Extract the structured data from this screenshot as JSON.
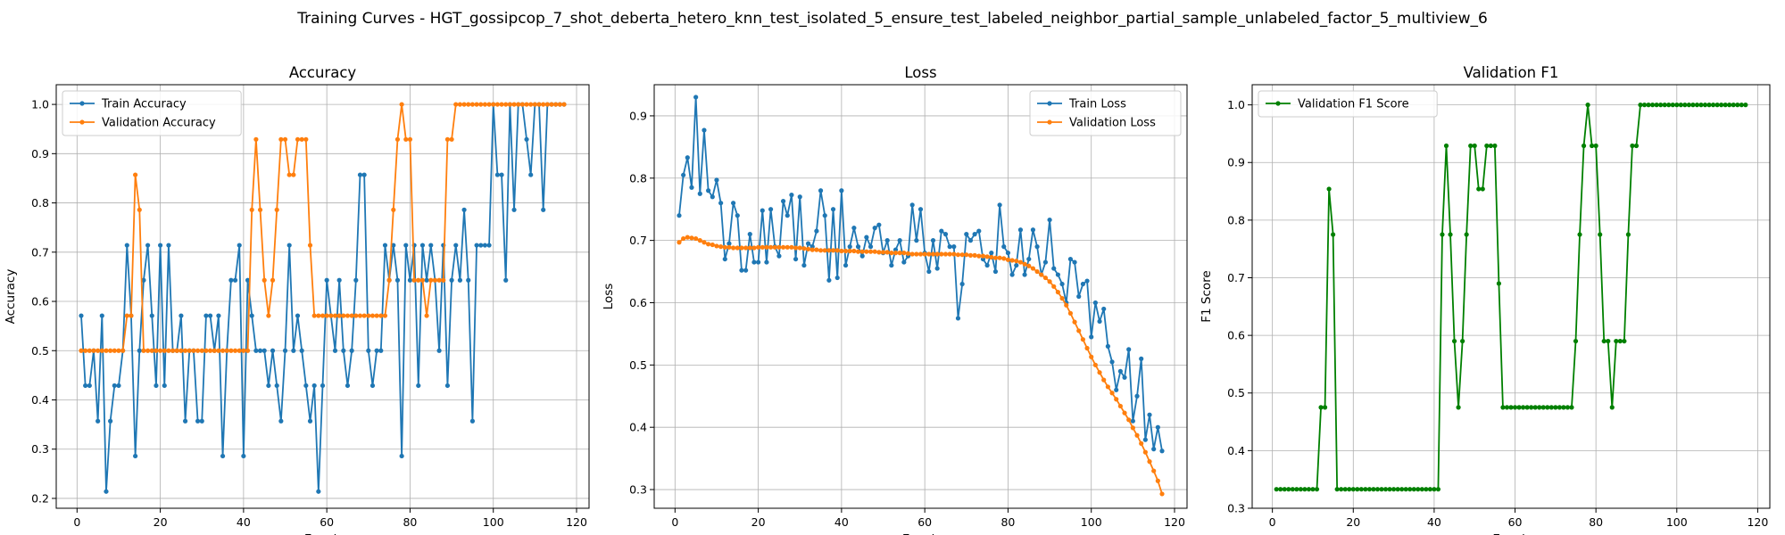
{
  "figure": {
    "suptitle": "Training Curves - HGT_gossipcop_7_shot_deberta_hetero_knn_test_isolated_5_ensure_test_labeled_neighbor_partial_sample_unlabeled_factor_5_multiview_6"
  },
  "chart_data": [
    {
      "type": "line",
      "title": "Accuracy",
      "xlabel": "Epoch",
      "ylabel": "Accuracy",
      "xlim": [
        -5,
        123
      ],
      "ylim": [
        0.18,
        1.04
      ],
      "xticks": [
        0,
        20,
        40,
        60,
        80,
        100,
        120
      ],
      "yticks": [
        0.2,
        0.3,
        0.4,
        0.5,
        0.6,
        0.7,
        0.8,
        0.9,
        1.0
      ],
      "grid": true,
      "legend_position": "top-left",
      "x": [
        1,
        2,
        3,
        4,
        5,
        6,
        7,
        8,
        9,
        10,
        11,
        12,
        13,
        14,
        15,
        16,
        17,
        18,
        19,
        20,
        21,
        22,
        23,
        24,
        25,
        26,
        27,
        28,
        29,
        30,
        31,
        32,
        33,
        34,
        35,
        36,
        37,
        38,
        39,
        40,
        41,
        42,
        43,
        44,
        45,
        46,
        47,
        48,
        49,
        50,
        51,
        52,
        53,
        54,
        55,
        56,
        57,
        58,
        59,
        60,
        61,
        62,
        63,
        64,
        65,
        66,
        67,
        68,
        69,
        70,
        71,
        72,
        73,
        74,
        75,
        76,
        77,
        78,
        79,
        80,
        81,
        82,
        83,
        84,
        85,
        86,
        87,
        88,
        89,
        90,
        91,
        92,
        93,
        94,
        95,
        96,
        97,
        98,
        99,
        100,
        101,
        102,
        103,
        104,
        105,
        106,
        107,
        108,
        109,
        110,
        111,
        112,
        113,
        114,
        115,
        116,
        117
      ],
      "series": [
        {
          "name": "Train Accuracy",
          "color": "#1f77b4",
          "values": [
            0.571,
            0.429,
            0.429,
            0.5,
            0.357,
            0.571,
            0.214,
            0.357,
            0.429,
            0.429,
            0.5,
            0.714,
            0.571,
            0.286,
            0.5,
            0.643,
            0.714,
            0.571,
            0.429,
            0.714,
            0.429,
            0.714,
            0.5,
            0.5,
            0.571,
            0.357,
            0.5,
            0.5,
            0.357,
            0.357,
            0.571,
            0.571,
            0.5,
            0.571,
            0.286,
            0.5,
            0.643,
            0.643,
            0.714,
            0.286,
            0.643,
            0.571,
            0.5,
            0.5,
            0.5,
            0.429,
            0.5,
            0.429,
            0.357,
            0.5,
            0.714,
            0.5,
            0.571,
            0.5,
            0.429,
            0.357,
            0.429,
            0.214,
            0.429,
            0.643,
            0.571,
            0.5,
            0.643,
            0.5,
            0.429,
            0.5,
            0.643,
            0.857,
            0.857,
            0.5,
            0.429,
            0.5,
            0.5,
            0.714,
            0.643,
            0.714,
            0.643,
            0.286,
            0.714,
            0.643,
            0.714,
            0.429,
            0.714,
            0.643,
            0.714,
            0.643,
            0.5,
            0.714,
            0.429,
            0.643,
            0.714,
            0.643,
            0.786,
            0.643,
            0.357,
            0.714,
            0.714,
            0.714,
            0.714,
            1.0,
            0.857,
            0.857,
            0.643,
            1.0,
            0.786,
            1.0,
            1.0,
            0.929,
            0.857,
            1.0,
            1.0,
            0.786,
            1.0,
            1.0,
            1.0,
            1.0,
            1.0
          ]
        },
        {
          "name": "Validation Accuracy",
          "color": "#ff7f0e",
          "values": [
            0.5,
            0.5,
            0.5,
            0.5,
            0.5,
            0.5,
            0.5,
            0.5,
            0.5,
            0.5,
            0.5,
            0.571,
            0.571,
            0.857,
            0.786,
            0.5,
            0.5,
            0.5,
            0.5,
            0.5,
            0.5,
            0.5,
            0.5,
            0.5,
            0.5,
            0.5,
            0.5,
            0.5,
            0.5,
            0.5,
            0.5,
            0.5,
            0.5,
            0.5,
            0.5,
            0.5,
            0.5,
            0.5,
            0.5,
            0.5,
            0.5,
            0.786,
            0.929,
            0.786,
            0.643,
            0.571,
            0.643,
            0.786,
            0.929,
            0.929,
            0.857,
            0.857,
            0.929,
            0.929,
            0.929,
            0.714,
            0.571,
            0.571,
            0.571,
            0.571,
            0.571,
            0.571,
            0.571,
            0.571,
            0.571,
            0.571,
            0.571,
            0.571,
            0.571,
            0.571,
            0.571,
            0.571,
            0.571,
            0.571,
            0.643,
            0.786,
            0.929,
            1.0,
            0.929,
            0.929,
            0.643,
            0.643,
            0.643,
            0.571,
            0.643,
            0.643,
            0.643,
            0.643,
            0.929,
            0.929,
            1.0,
            1.0,
            1.0,
            1.0,
            1.0,
            1.0,
            1.0,
            1.0,
            1.0,
            1.0,
            1.0,
            1.0,
            1.0,
            1.0,
            1.0,
            1.0,
            1.0,
            1.0,
            1.0,
            1.0,
            1.0,
            1.0,
            1.0,
            1.0,
            1.0,
            1.0,
            1.0
          ]
        }
      ]
    },
    {
      "type": "line",
      "title": "Loss",
      "xlabel": "Epoch",
      "ylabel": "Loss",
      "xlim": [
        -5,
        123
      ],
      "ylim": [
        0.27,
        0.95
      ],
      "xticks": [
        0,
        20,
        40,
        60,
        80,
        100,
        120
      ],
      "yticks": [
        0.3,
        0.4,
        0.5,
        0.6,
        0.7,
        0.8,
        0.9
      ],
      "grid": true,
      "legend_position": "top-right",
      "x": [
        1,
        2,
        3,
        4,
        5,
        6,
        7,
        8,
        9,
        10,
        11,
        12,
        13,
        14,
        15,
        16,
        17,
        18,
        19,
        20,
        21,
        22,
        23,
        24,
        25,
        26,
        27,
        28,
        29,
        30,
        31,
        32,
        33,
        34,
        35,
        36,
        37,
        38,
        39,
        40,
        41,
        42,
        43,
        44,
        45,
        46,
        47,
        48,
        49,
        50,
        51,
        52,
        53,
        54,
        55,
        56,
        57,
        58,
        59,
        60,
        61,
        62,
        63,
        64,
        65,
        66,
        67,
        68,
        69,
        70,
        71,
        72,
        73,
        74,
        75,
        76,
        77,
        78,
        79,
        80,
        81,
        82,
        83,
        84,
        85,
        86,
        87,
        88,
        89,
        90,
        91,
        92,
        93,
        94,
        95,
        96,
        97,
        98,
        99,
        100,
        101,
        102,
        103,
        104,
        105,
        106,
        107,
        108,
        109,
        110,
        111,
        112,
        113,
        114,
        115,
        116,
        117
      ],
      "series": [
        {
          "name": "Train Loss",
          "color": "#1f77b4",
          "values": [
            0.74,
            0.805,
            0.833,
            0.785,
            0.93,
            0.775,
            0.877,
            0.78,
            0.77,
            0.797,
            0.76,
            0.67,
            0.695,
            0.76,
            0.74,
            0.652,
            0.652,
            0.71,
            0.665,
            0.665,
            0.748,
            0.665,
            0.75,
            0.69,
            0.675,
            0.763,
            0.74,
            0.773,
            0.67,
            0.77,
            0.66,
            0.695,
            0.69,
            0.715,
            0.78,
            0.74,
            0.636,
            0.75,
            0.64,
            0.78,
            0.66,
            0.69,
            0.72,
            0.69,
            0.675,
            0.705,
            0.69,
            0.72,
            0.725,
            0.68,
            0.7,
            0.66,
            0.685,
            0.7,
            0.665,
            0.675,
            0.757,
            0.7,
            0.75,
            0.68,
            0.65,
            0.7,
            0.655,
            0.715,
            0.71,
            0.69,
            0.69,
            0.575,
            0.63,
            0.71,
            0.7,
            0.71,
            0.715,
            0.67,
            0.66,
            0.68,
            0.65,
            0.757,
            0.69,
            0.68,
            0.645,
            0.66,
            0.717,
            0.645,
            0.67,
            0.717,
            0.69,
            0.645,
            0.665,
            0.733,
            0.655,
            0.645,
            0.63,
            0.6,
            0.67,
            0.665,
            0.61,
            0.63,
            0.635,
            0.545,
            0.6,
            0.57,
            0.59,
            0.53,
            0.505,
            0.46,
            0.49,
            0.48,
            0.525,
            0.41,
            0.45,
            0.51,
            0.38,
            0.42,
            0.365,
            0.4,
            0.362
          ]
        },
        {
          "name": "Validation Loss",
          "color": "#ff7f0e",
          "values": [
            0.697,
            0.703,
            0.705,
            0.704,
            0.703,
            0.7,
            0.697,
            0.694,
            0.693,
            0.691,
            0.69,
            0.689,
            0.689,
            0.688,
            0.688,
            0.688,
            0.688,
            0.688,
            0.688,
            0.689,
            0.689,
            0.689,
            0.689,
            0.689,
            0.689,
            0.689,
            0.689,
            0.689,
            0.688,
            0.688,
            0.687,
            0.686,
            0.685,
            0.685,
            0.684,
            0.684,
            0.684,
            0.684,
            0.684,
            0.683,
            0.683,
            0.683,
            0.683,
            0.682,
            0.682,
            0.682,
            0.682,
            0.682,
            0.681,
            0.681,
            0.681,
            0.68,
            0.68,
            0.68,
            0.68,
            0.679,
            0.678,
            0.678,
            0.678,
            0.678,
            0.678,
            0.678,
            0.678,
            0.678,
            0.678,
            0.678,
            0.678,
            0.677,
            0.677,
            0.677,
            0.676,
            0.676,
            0.675,
            0.675,
            0.674,
            0.673,
            0.672,
            0.672,
            0.671,
            0.669,
            0.668,
            0.667,
            0.665,
            0.662,
            0.659,
            0.655,
            0.65,
            0.645,
            0.64,
            0.634,
            0.626,
            0.617,
            0.607,
            0.596,
            0.583,
            0.569,
            0.555,
            0.541,
            0.527,
            0.513,
            0.5,
            0.488,
            0.476,
            0.465,
            0.455,
            0.445,
            0.434,
            0.423,
            0.412,
            0.399,
            0.387,
            0.374,
            0.36,
            0.345,
            0.33,
            0.314,
            0.293
          ]
        }
      ]
    },
    {
      "type": "line",
      "title": "Validation F1",
      "xlabel": "Epoch",
      "ylabel": "F1 Score",
      "xlim": [
        -5,
        123
      ],
      "ylim": [
        0.3,
        1.035
      ],
      "xticks": [
        0,
        20,
        40,
        60,
        80,
        100,
        120
      ],
      "yticks": [
        0.3,
        0.4,
        0.5,
        0.6,
        0.7,
        0.8,
        0.9,
        1.0
      ],
      "grid": true,
      "legend_position": "top-left",
      "x": [
        1,
        2,
        3,
        4,
        5,
        6,
        7,
        8,
        9,
        10,
        11,
        12,
        13,
        14,
        15,
        16,
        17,
        18,
        19,
        20,
        21,
        22,
        23,
        24,
        25,
        26,
        27,
        28,
        29,
        30,
        31,
        32,
        33,
        34,
        35,
        36,
        37,
        38,
        39,
        40,
        41,
        42,
        43,
        44,
        45,
        46,
        47,
        48,
        49,
        50,
        51,
        52,
        53,
        54,
        55,
        56,
        57,
        58,
        59,
        60,
        61,
        62,
        63,
        64,
        65,
        66,
        67,
        68,
        69,
        70,
        71,
        72,
        73,
        74,
        75,
        76,
        77,
        78,
        79,
        80,
        81,
        82,
        83,
        84,
        85,
        86,
        87,
        88,
        89,
        90,
        91,
        92,
        93,
        94,
        95,
        96,
        97,
        98,
        99,
        100,
        101,
        102,
        103,
        104,
        105,
        106,
        107,
        108,
        109,
        110,
        111,
        112,
        113,
        114,
        115,
        116,
        117
      ],
      "series": [
        {
          "name": "Validation F1 Score",
          "color": "#008000",
          "values": [
            0.333,
            0.333,
            0.333,
            0.333,
            0.333,
            0.333,
            0.333,
            0.333,
            0.333,
            0.333,
            0.333,
            0.475,
            0.475,
            0.854,
            0.775,
            0.333,
            0.333,
            0.333,
            0.333,
            0.333,
            0.333,
            0.333,
            0.333,
            0.333,
            0.333,
            0.333,
            0.333,
            0.333,
            0.333,
            0.333,
            0.333,
            0.333,
            0.333,
            0.333,
            0.333,
            0.333,
            0.333,
            0.333,
            0.333,
            0.333,
            0.333,
            0.775,
            0.929,
            0.775,
            0.59,
            0.475,
            0.59,
            0.775,
            0.929,
            0.929,
            0.854,
            0.854,
            0.929,
            0.929,
            0.929,
            0.69,
            0.475,
            0.475,
            0.475,
            0.475,
            0.475,
            0.475,
            0.475,
            0.475,
            0.475,
            0.475,
            0.475,
            0.475,
            0.475,
            0.475,
            0.475,
            0.475,
            0.475,
            0.475,
            0.59,
            0.775,
            0.929,
            1.0,
            0.929,
            0.929,
            0.775,
            0.59,
            0.59,
            0.475,
            0.59,
            0.59,
            0.59,
            0.775,
            0.929,
            0.929,
            1.0,
            1.0,
            1.0,
            1.0,
            1.0,
            1.0,
            1.0,
            1.0,
            1.0,
            1.0,
            1.0,
            1.0,
            1.0,
            1.0,
            1.0,
            1.0,
            1.0,
            1.0,
            1.0,
            1.0,
            1.0,
            1.0,
            1.0,
            1.0,
            1.0,
            1.0,
            1.0
          ]
        }
      ]
    }
  ]
}
